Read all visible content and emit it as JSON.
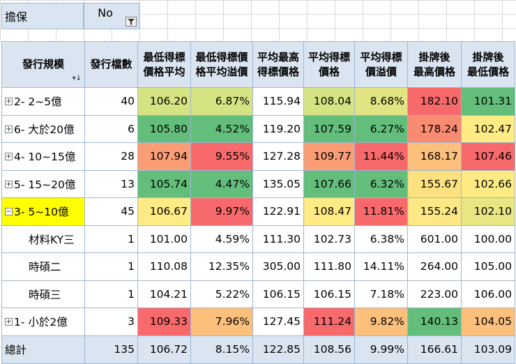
{
  "filter": {
    "label": "擔保",
    "value": "No",
    "button_icon": "filter-icon"
  },
  "header": {
    "row_label": "發行規模",
    "columns": [
      "發行檔數",
      "最低得標\n價格平均",
      "最低得標價\n格平均溢價",
      "平均最高\n得標價格",
      "平均得標\n價格",
      "平均得標\n價溢價",
      "掛牌後\n最高價格",
      "掛牌後\n最低價格"
    ]
  },
  "colors": {
    "green": "#63be7b",
    "light_green": "#a9d27f",
    "yellow_green": "#d6e383",
    "yellow": "#ffeb84",
    "light_orange": "#fdc07c",
    "orange": "#fa9d75",
    "red": "#f8696b",
    "highlight": "#ffff00",
    "header_bg": "#dbe5f1"
  },
  "rows": [
    {
      "label": "2- 2~5億",
      "expand": "⊞",
      "level": 0,
      "cells": [
        "40",
        "106.20",
        "6.87%",
        "115.94",
        "108.04",
        "8.68%",
        "182.10",
        "101.31"
      ],
      "bg": [
        "",
        "#d6e383",
        "#d6e383",
        "",
        "#d6e383",
        "#e2e483",
        "#f8696b",
        "#63be7b"
      ]
    },
    {
      "label": "6- 大於20億",
      "expand": "⊞",
      "level": 0,
      "cells": [
        "6",
        "105.80",
        "4.52%",
        "119.20",
        "107.59",
        "6.27%",
        "178.24",
        "102.47"
      ],
      "bg": [
        "",
        "#63be7b",
        "#63be7b",
        "",
        "#63be7b",
        "#63be7b",
        "#f98b72",
        "#ffeb84"
      ]
    },
    {
      "label": "4- 10~15億",
      "expand": "⊞",
      "level": 0,
      "cells": [
        "28",
        "107.94",
        "9.55%",
        "127.28",
        "109.77",
        "11.44%",
        "168.17",
        "107.46"
      ],
      "bg": [
        "",
        "#fa9d75",
        "#f8696b",
        "",
        "#fa9d75",
        "#f8696b",
        "#fdc07c",
        "#f8696b"
      ]
    },
    {
      "label": "5- 15~20億",
      "expand": "⊞",
      "level": 0,
      "cells": [
        "13",
        "105.74",
        "4.47%",
        "135.05",
        "107.66",
        "6.32%",
        "155.67",
        "102.66"
      ],
      "bg": [
        "",
        "#63be7b",
        "#63be7b",
        "",
        "#63be7b",
        "#63be7b",
        "#fde07f",
        "#ffeb84"
      ]
    },
    {
      "label": "3- 5~10億",
      "expand": "⊟",
      "level": 0,
      "selected": true,
      "cells": [
        "45",
        "106.67",
        "9.97%",
        "122.91",
        "108.47",
        "11.81%",
        "155.24",
        "102.10"
      ],
      "bg": [
        "",
        "#ffeb84",
        "#f8696b",
        "",
        "#ffeb84",
        "#f8696b",
        "#fde884",
        "#e8e583"
      ]
    },
    {
      "label": "材料KY三",
      "expand": "",
      "level": 1,
      "cells": [
        "1",
        "101.00",
        "4.59%",
        "111.30",
        "102.73",
        "6.38%",
        "601.00",
        "100.00"
      ],
      "bg": [
        "",
        "",
        "",
        "",
        "",
        "",
        "",
        ""
      ]
    },
    {
      "label": "時碩二",
      "expand": "",
      "level": 1,
      "cells": [
        "1",
        "110.08",
        "12.35%",
        "305.00",
        "111.80",
        "14.11%",
        "264.00",
        "105.00"
      ],
      "bg": [
        "",
        "",
        "",
        "",
        "",
        "",
        "",
        ""
      ]
    },
    {
      "label": "時碩三",
      "expand": "",
      "level": 1,
      "cells": [
        "1",
        "104.21",
        "5.22%",
        "106.15",
        "106.15",
        "7.18%",
        "223.00",
        "106.00"
      ],
      "bg": [
        "",
        "",
        "",
        "",
        "",
        "",
        "",
        ""
      ]
    },
    {
      "label": "1- 小於2億",
      "expand": "⊞",
      "level": 0,
      "cells": [
        "3",
        "109.33",
        "7.96%",
        "127.45",
        "111.24",
        "9.82%",
        "140.13",
        "104.05"
      ],
      "bg": [
        "",
        "#f8696b",
        "#fdc07c",
        "",
        "#f8696b",
        "#fdc07c",
        "#63be7b",
        "#fdc07c"
      ]
    }
  ],
  "total": {
    "label": "總計",
    "cells": [
      "135",
      "106.72",
      "8.15%",
      "122.85",
      "108.56",
      "9.99%",
      "166.61",
      "103.09"
    ]
  }
}
